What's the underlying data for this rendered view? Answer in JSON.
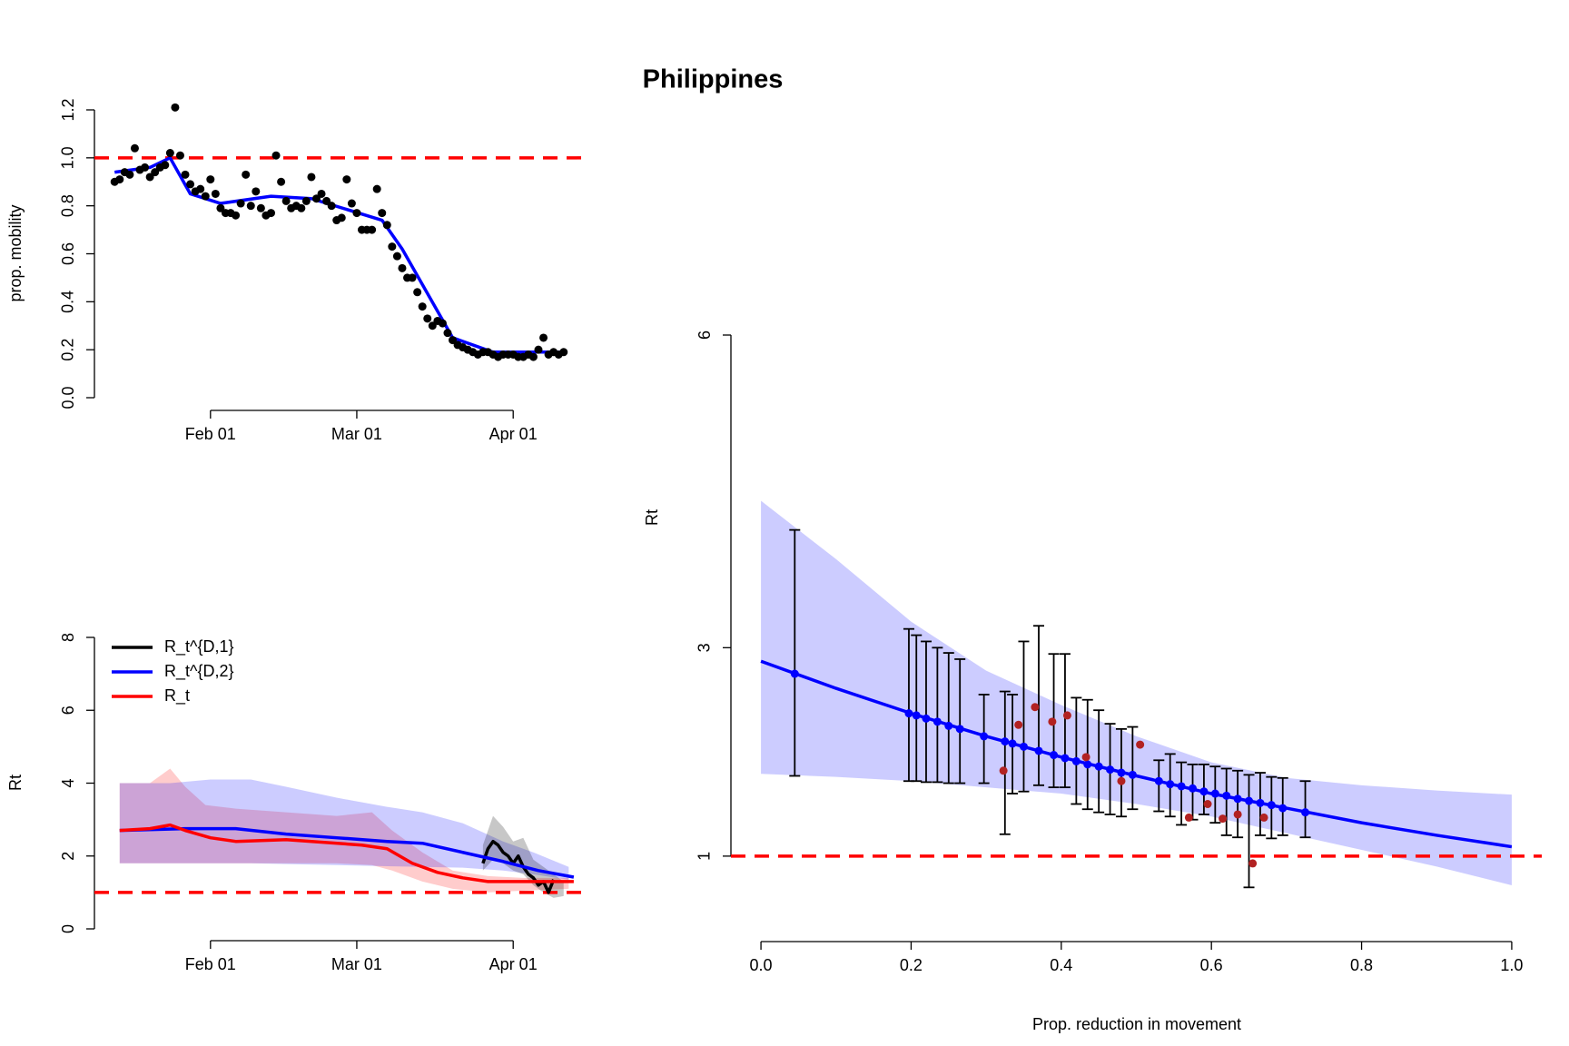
{
  "title": "Philippines",
  "chart_data": [
    {
      "type": "scatter",
      "ylabel": "prop. mobility",
      "xlim": [
        -23,
        74
      ],
      "xticks": [
        {
          "value": 0,
          "label": "Feb 01"
        },
        {
          "value": 29,
          "label": "Mar 01"
        },
        {
          "value": 60,
          "label": "Apr 01"
        }
      ],
      "ylim": [
        0,
        1.2
      ],
      "yticks": [
        {
          "value": 0,
          "label": "0.0"
        },
        0.2,
        0.4,
        0.6,
        0.8,
        {
          "value": 1,
          "label": "1.0"
        },
        1.2
      ],
      "hline": 1,
      "hline_color": "#ff0000",
      "series": [
        {
          "style": "points",
          "color": "#000000",
          "x": [
            -19,
            -18,
            -17,
            -16,
            -15,
            -14,
            -13,
            -12,
            -11,
            -10,
            -9,
            -8,
            -7,
            -6,
            -5,
            -4,
            -3,
            -2,
            -1,
            0,
            1,
            2,
            3,
            4,
            5,
            6,
            7,
            8,
            9,
            10,
            11,
            12,
            13,
            14,
            15,
            16,
            17,
            18,
            19,
            20,
            21,
            22,
            23,
            24,
            25,
            26,
            27,
            28,
            29,
            30,
            31,
            32,
            33,
            34,
            35,
            36,
            37,
            38,
            39,
            40,
            41,
            42,
            43,
            44,
            45,
            46,
            47,
            48,
            49,
            50,
            51,
            52,
            53,
            54,
            55,
            56,
            57,
            58,
            59,
            60,
            61,
            62,
            63,
            64,
            65,
            66,
            67,
            68,
            69,
            70
          ],
          "values": [
            0.9,
            0.91,
            0.94,
            0.93,
            1.04,
            0.95,
            0.96,
            0.92,
            0.94,
            0.96,
            0.97,
            1.02,
            1.21,
            1.01,
            0.93,
            0.89,
            0.86,
            0.87,
            0.84,
            0.91,
            0.85,
            0.79,
            0.77,
            0.77,
            0.76,
            0.81,
            0.93,
            0.8,
            0.86,
            0.79,
            0.76,
            0.77,
            1.01,
            0.9,
            0.82,
            0.79,
            0.8,
            0.79,
            0.82,
            0.92,
            0.83,
            0.85,
            0.82,
            0.8,
            0.74,
            0.75,
            0.91,
            0.81,
            0.77,
            0.7,
            0.7,
            0.7,
            0.87,
            0.77,
            0.72,
            0.63,
            0.59,
            0.54,
            0.5,
            0.5,
            0.44,
            0.38,
            0.33,
            0.3,
            0.32,
            0.31,
            0.27,
            0.24,
            0.22,
            0.21,
            0.2,
            0.19,
            0.18,
            0.19,
            0.19,
            0.18,
            0.17,
            0.18,
            0.18,
            0.18,
            0.17,
            0.17,
            0.18,
            0.17,
            0.2,
            0.25,
            0.18,
            0.19,
            0.18,
            0.19
          ]
        },
        {
          "style": "line",
          "color": "#0000ff",
          "x": [
            -19,
            -12,
            -8,
            -4,
            2,
            12,
            20,
            34,
            38,
            48,
            56,
            70
          ],
          "values": [
            0.94,
            0.96,
            1.0,
            0.85,
            0.81,
            0.84,
            0.83,
            0.74,
            0.62,
            0.25,
            0.19,
            0.19
          ]
        }
      ]
    },
    {
      "type": "line",
      "ylabel": "Rt",
      "legend": "top-left",
      "xlim": [
        -23,
        74
      ],
      "xticks": [
        {
          "value": 0,
          "label": "Feb 01"
        },
        {
          "value": 29,
          "label": "Mar 01"
        },
        {
          "value": 60,
          "label": "Apr 01"
        }
      ],
      "ylim": [
        0,
        8
      ],
      "yticks": [
        0,
        2,
        4,
        6,
        8
      ],
      "hline": 1,
      "hline_color": "#ff0000",
      "series": [
        {
          "style": "band",
          "color": "rgba(255,0,0,0.2)",
          "x": [
            -18,
            -12,
            -8,
            -5,
            -1,
            5,
            15,
            25,
            32,
            36,
            42,
            48,
            55,
            62,
            71
          ],
          "upper": [
            4.0,
            4.0,
            4.4,
            3.9,
            3.4,
            3.3,
            3.2,
            3.1,
            3.2,
            2.7,
            2.1,
            1.6,
            1.45,
            1.4,
            1.4
          ],
          "lower": [
            1.8,
            1.8,
            1.8,
            1.8,
            1.8,
            1.8,
            1.8,
            1.8,
            1.75,
            1.6,
            1.3,
            1.1,
            1.0,
            1.05,
            1.1
          ]
        },
        {
          "style": "band",
          "color": "rgba(0,0,255,0.2)",
          "x": [
            -18,
            -8,
            0,
            8,
            15,
            25,
            35,
            42,
            50,
            58,
            64,
            71
          ],
          "upper": [
            4.0,
            4.0,
            4.1,
            4.1,
            3.9,
            3.6,
            3.35,
            3.2,
            2.9,
            2.4,
            2.1,
            1.7
          ],
          "lower": [
            1.8,
            1.8,
            1.8,
            1.8,
            1.78,
            1.75,
            1.72,
            1.7,
            1.68,
            1.6,
            1.5,
            1.35
          ]
        },
        {
          "style": "band",
          "color": "rgba(0,0,0,0.22)",
          "x": [
            54,
            56,
            58,
            60,
            62,
            64,
            66,
            68,
            70
          ],
          "upper": [
            2.3,
            3.1,
            2.8,
            2.4,
            2.5,
            1.9,
            1.7,
            1.5,
            1.3
          ],
          "lower": [
            1.6,
            1.9,
            1.8,
            1.6,
            1.5,
            1.2,
            1.0,
            0.85,
            0.9
          ]
        },
        {
          "style": "line",
          "name": "R_t^{D,1}",
          "color": "#000000",
          "x": [
            54,
            55,
            56,
            57,
            58,
            59,
            60,
            61,
            62,
            63,
            64,
            65,
            66,
            67,
            68
          ],
          "values": [
            1.8,
            2.2,
            2.4,
            2.3,
            2.1,
            2.0,
            1.8,
            2.0,
            1.7,
            1.5,
            1.4,
            1.2,
            1.3,
            1.0,
            1.35
          ]
        },
        {
          "style": "line",
          "name": "R_t^{D,2}",
          "color": "#0000ff",
          "x": [
            -18,
            -5,
            5,
            15,
            25,
            35,
            42,
            50,
            58,
            65,
            72
          ],
          "values": [
            2.7,
            2.75,
            2.75,
            2.6,
            2.5,
            2.4,
            2.35,
            2.1,
            1.85,
            1.6,
            1.42
          ]
        },
        {
          "style": "line",
          "name": "R_t",
          "color": "#ff0000",
          "x": [
            -18,
            -12,
            -8,
            -5,
            0,
            5,
            15,
            30,
            35,
            40,
            45,
            50,
            55,
            72
          ],
          "values": [
            2.7,
            2.75,
            2.85,
            2.7,
            2.5,
            2.4,
            2.45,
            2.3,
            2.2,
            1.8,
            1.55,
            1.4,
            1.3,
            1.3
          ]
        }
      ]
    },
    {
      "type": "scatter",
      "ylabel": "Rt",
      "xlabel": "Prop. reduction in movement",
      "xlim": [
        -0.04,
        1.04
      ],
      "xticks": [
        {
          "value": 0,
          "label": "0.0"
        },
        0.2,
        0.4,
        0.6,
        0.8,
        {
          "value": 1,
          "label": "1.0"
        }
      ],
      "ylim": [
        0.18,
        6
      ],
      "yticks": [
        1,
        3,
        6
      ],
      "hline": 1,
      "hline_color": "#ff0000",
      "series": [
        {
          "style": "band",
          "color": "rgba(0,0,255,0.2)",
          "x": [
            0,
            0.1,
            0.2,
            0.3,
            0.4,
            0.5,
            0.6,
            0.7,
            0.8,
            0.9,
            1.0
          ],
          "upper": [
            4.41,
            3.85,
            3.25,
            2.78,
            2.45,
            2.15,
            1.9,
            1.75,
            1.68,
            1.63,
            1.59
          ],
          "lower": [
            1.79,
            1.76,
            1.72,
            1.66,
            1.6,
            1.5,
            1.38,
            1.22,
            1.06,
            0.9,
            0.72
          ]
        },
        {
          "style": "line",
          "color": "#0000ff",
          "x": [
            0,
            0.1,
            0.2,
            0.3,
            0.4,
            0.5,
            0.6,
            0.7,
            0.8,
            0.9,
            1.0
          ],
          "values": [
            2.87,
            2.61,
            2.37,
            2.15,
            1.95,
            1.77,
            1.6,
            1.46,
            1.32,
            1.2,
            1.09
          ]
        },
        {
          "style": "points",
          "color": "#0000ff",
          "bar_color": "#000000",
          "x": [
            0.045,
            0.197,
            0.207,
            0.22,
            0.235,
            0.25,
            0.265,
            0.297,
            0.325,
            0.335,
            0.35,
            0.37,
            0.39,
            0.405,
            0.42,
            0.435,
            0.45,
            0.465,
            0.48,
            0.495,
            0.53,
            0.545,
            0.56,
            0.575,
            0.59,
            0.605,
            0.62,
            0.635,
            0.65,
            0.665,
            0.68,
            0.695,
            0.725
          ],
          "values": [
            2.75,
            2.37,
            2.35,
            2.32,
            2.29,
            2.25,
            2.22,
            2.15,
            2.1,
            2.08,
            2.05,
            2.01,
            1.97,
            1.94,
            1.91,
            1.88,
            1.86,
            1.83,
            1.8,
            1.78,
            1.72,
            1.69,
            1.67,
            1.65,
            1.62,
            1.6,
            1.58,
            1.55,
            1.53,
            1.51,
            1.49,
            1.46,
            1.42
          ],
          "lower": [
            1.77,
            1.72,
            1.72,
            1.71,
            1.71,
            1.7,
            1.7,
            1.7,
            1.21,
            1.6,
            1.62,
            1.68,
            1.66,
            1.66,
            1.5,
            1.45,
            1.42,
            1.4,
            1.38,
            1.45,
            1.43,
            1.38,
            1.3,
            1.35,
            1.4,
            1.32,
            1.2,
            1.18,
            0.7,
            1.2,
            1.17,
            1.2,
            1.18
          ],
          "upper": [
            4.13,
            3.18,
            3.12,
            3.06,
            3.0,
            2.95,
            2.89,
            2.55,
            2.58,
            2.55,
            3.06,
            3.21,
            2.94,
            2.94,
            2.52,
            2.5,
            2.4,
            2.27,
            2.22,
            2.24,
            1.92,
            1.98,
            1.9,
            1.88,
            1.88,
            1.86,
            1.84,
            1.82,
            1.78,
            1.8,
            1.76,
            1.75,
            1.72
          ]
        },
        {
          "style": "points",
          "color": "#b22222",
          "x": [
            0.323,
            0.343,
            0.365,
            0.388,
            0.408,
            0.433,
            0.48,
            0.505,
            0.57,
            0.595,
            0.615,
            0.635,
            0.655,
            0.67
          ],
          "values": [
            1.82,
            2.26,
            2.43,
            2.29,
            2.35,
            1.95,
            1.72,
            2.07,
            1.37,
            1.5,
            1.36,
            1.4,
            0.93,
            1.37
          ]
        }
      ]
    }
  ]
}
